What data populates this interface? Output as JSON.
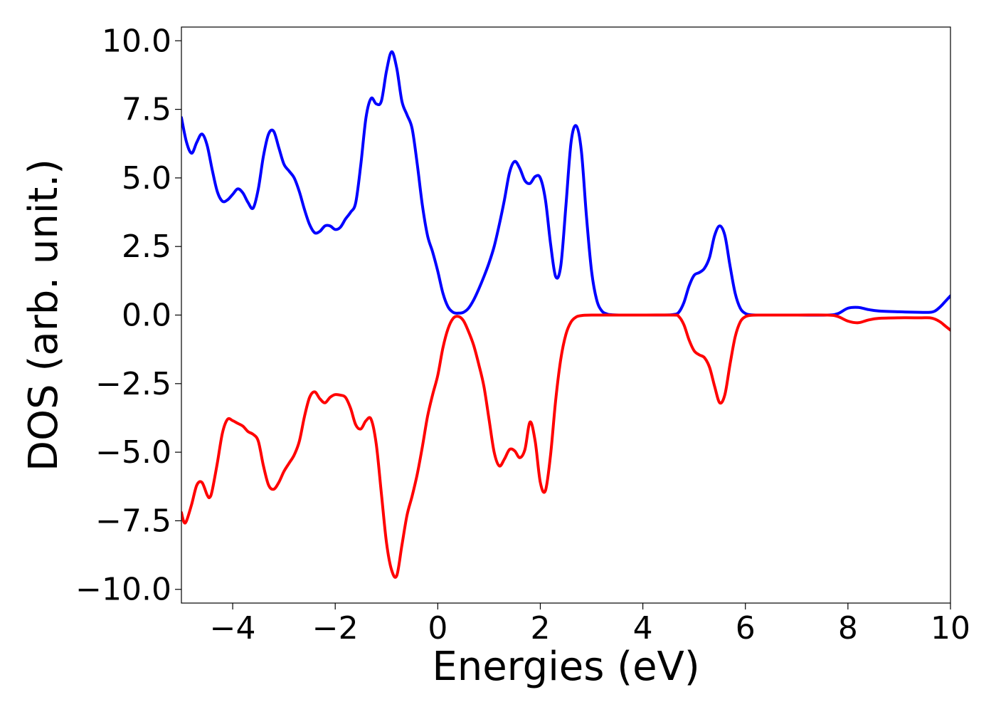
{
  "chart_data": {
    "type": "line",
    "title": "",
    "xlabel": "Energies (eV)",
    "ylabel": "DOS (arb. unit.)",
    "xlim": [
      -5,
      10
    ],
    "ylim": [
      -10.5,
      10.5
    ],
    "grid": false,
    "legend": "none",
    "x_ticks": [
      {
        "value": -4,
        "label": "−4"
      },
      {
        "value": -2,
        "label": "−2"
      },
      {
        "value": 0,
        "label": "0"
      },
      {
        "value": 2,
        "label": "2"
      },
      {
        "value": 4,
        "label": "4"
      },
      {
        "value": 6,
        "label": "6"
      },
      {
        "value": 8,
        "label": "8"
      },
      {
        "value": 10,
        "label": "10"
      }
    ],
    "y_ticks": [
      {
        "value": 10,
        "label": "10.0"
      },
      {
        "value": 7.5,
        "label": "7.5"
      },
      {
        "value": 5,
        "label": "5.0"
      },
      {
        "value": 2.5,
        "label": "2.5"
      },
      {
        "value": 0,
        "label": "0.0"
      },
      {
        "value": -2.5,
        "label": "−2.5"
      },
      {
        "value": -5,
        "label": "−5.0"
      },
      {
        "value": -7.5,
        "label": "−7.5"
      },
      {
        "value": -10,
        "label": "−10.0"
      }
    ],
    "series": [
      {
        "color": "#0000ff",
        "points": [
          [
            -5.0,
            7.2
          ],
          [
            -4.9,
            6.3
          ],
          [
            -4.8,
            5.9
          ],
          [
            -4.7,
            6.3
          ],
          [
            -4.6,
            6.6
          ],
          [
            -4.5,
            6.2
          ],
          [
            -4.4,
            5.3
          ],
          [
            -4.3,
            4.5
          ],
          [
            -4.2,
            4.15
          ],
          [
            -4.1,
            4.2
          ],
          [
            -4.0,
            4.4
          ],
          [
            -3.9,
            4.6
          ],
          [
            -3.8,
            4.45
          ],
          [
            -3.7,
            4.1
          ],
          [
            -3.6,
            3.9
          ],
          [
            -3.5,
            4.6
          ],
          [
            -3.4,
            5.8
          ],
          [
            -3.3,
            6.6
          ],
          [
            -3.2,
            6.7
          ],
          [
            -3.1,
            6.1
          ],
          [
            -3.0,
            5.5
          ],
          [
            -2.9,
            5.25
          ],
          [
            -2.8,
            5.0
          ],
          [
            -2.7,
            4.5
          ],
          [
            -2.6,
            3.85
          ],
          [
            -2.5,
            3.3
          ],
          [
            -2.4,
            3.0
          ],
          [
            -2.3,
            3.05
          ],
          [
            -2.2,
            3.25
          ],
          [
            -2.1,
            3.25
          ],
          [
            -2.0,
            3.12
          ],
          [
            -1.9,
            3.2
          ],
          [
            -1.8,
            3.5
          ],
          [
            -1.7,
            3.75
          ],
          [
            -1.6,
            4.1
          ],
          [
            -1.5,
            5.5
          ],
          [
            -1.4,
            7.2
          ],
          [
            -1.3,
            7.9
          ],
          [
            -1.2,
            7.7
          ],
          [
            -1.1,
            7.8
          ],
          [
            -1.0,
            8.9
          ],
          [
            -0.9,
            9.6
          ],
          [
            -0.8,
            9.0
          ],
          [
            -0.7,
            7.8
          ],
          [
            -0.6,
            7.3
          ],
          [
            -0.5,
            6.8
          ],
          [
            -0.4,
            5.5
          ],
          [
            -0.3,
            4.0
          ],
          [
            -0.2,
            2.9
          ],
          [
            -0.1,
            2.3
          ],
          [
            0.0,
            1.6
          ],
          [
            0.1,
            0.8
          ],
          [
            0.2,
            0.3
          ],
          [
            0.3,
            0.1
          ],
          [
            0.4,
            0.07
          ],
          [
            0.5,
            0.1
          ],
          [
            0.6,
            0.25
          ],
          [
            0.7,
            0.55
          ],
          [
            0.8,
            0.95
          ],
          [
            0.9,
            1.4
          ],
          [
            1.0,
            1.9
          ],
          [
            1.1,
            2.5
          ],
          [
            1.2,
            3.3
          ],
          [
            1.3,
            4.2
          ],
          [
            1.4,
            5.2
          ],
          [
            1.5,
            5.6
          ],
          [
            1.6,
            5.35
          ],
          [
            1.7,
            4.9
          ],
          [
            1.8,
            4.8
          ],
          [
            1.9,
            5.05
          ],
          [
            2.0,
            5.0
          ],
          [
            2.1,
            4.2
          ],
          [
            2.2,
            2.6
          ],
          [
            2.3,
            1.4
          ],
          [
            2.4,
            1.8
          ],
          [
            2.5,
            4.0
          ],
          [
            2.6,
            6.3
          ],
          [
            2.7,
            6.9
          ],
          [
            2.8,
            6.0
          ],
          [
            2.9,
            3.6
          ],
          [
            3.0,
            1.6
          ],
          [
            3.1,
            0.55
          ],
          [
            3.2,
            0.15
          ],
          [
            3.3,
            0.04
          ],
          [
            3.4,
            0.01
          ],
          [
            3.6,
            0.0
          ],
          [
            4.0,
            0.0
          ],
          [
            4.4,
            0.0
          ],
          [
            4.6,
            0.02
          ],
          [
            4.7,
            0.1
          ],
          [
            4.8,
            0.45
          ],
          [
            4.9,
            1.05
          ],
          [
            5.0,
            1.45
          ],
          [
            5.1,
            1.55
          ],
          [
            5.2,
            1.7
          ],
          [
            5.3,
            2.1
          ],
          [
            5.4,
            2.9
          ],
          [
            5.5,
            3.25
          ],
          [
            5.6,
            2.9
          ],
          [
            5.7,
            1.8
          ],
          [
            5.8,
            0.8
          ],
          [
            5.9,
            0.25
          ],
          [
            6.0,
            0.06
          ],
          [
            6.1,
            0.01
          ],
          [
            6.3,
            0.0
          ],
          [
            7.0,
            0.0
          ],
          [
            7.6,
            0.0
          ],
          [
            7.8,
            0.05
          ],
          [
            8.0,
            0.25
          ],
          [
            8.2,
            0.28
          ],
          [
            8.4,
            0.2
          ],
          [
            8.6,
            0.15
          ],
          [
            9.0,
            0.12
          ],
          [
            9.4,
            0.1
          ],
          [
            9.6,
            0.1
          ],
          [
            9.7,
            0.15
          ],
          [
            9.8,
            0.3
          ],
          [
            9.9,
            0.5
          ],
          [
            10.0,
            0.7
          ]
        ]
      },
      {
        "color": "#ff0000",
        "points": [
          [
            -5.0,
            -7.2
          ],
          [
            -4.95,
            -7.55
          ],
          [
            -4.9,
            -7.5
          ],
          [
            -4.8,
            -6.9
          ],
          [
            -4.7,
            -6.2
          ],
          [
            -4.6,
            -6.1
          ],
          [
            -4.5,
            -6.55
          ],
          [
            -4.45,
            -6.65
          ],
          [
            -4.4,
            -6.4
          ],
          [
            -4.3,
            -5.4
          ],
          [
            -4.2,
            -4.3
          ],
          [
            -4.1,
            -3.8
          ],
          [
            -4.0,
            -3.85
          ],
          [
            -3.9,
            -3.95
          ],
          [
            -3.8,
            -4.05
          ],
          [
            -3.7,
            -4.25
          ],
          [
            -3.6,
            -4.35
          ],
          [
            -3.5,
            -4.6
          ],
          [
            -3.4,
            -5.5
          ],
          [
            -3.3,
            -6.2
          ],
          [
            -3.2,
            -6.35
          ],
          [
            -3.1,
            -6.1
          ],
          [
            -3.0,
            -5.7
          ],
          [
            -2.9,
            -5.4
          ],
          [
            -2.8,
            -5.1
          ],
          [
            -2.7,
            -4.6
          ],
          [
            -2.6,
            -3.7
          ],
          [
            -2.5,
            -3.0
          ],
          [
            -2.4,
            -2.8
          ],
          [
            -2.3,
            -3.05
          ],
          [
            -2.2,
            -3.2
          ],
          [
            -2.1,
            -3.0
          ],
          [
            -2.0,
            -2.9
          ],
          [
            -1.9,
            -2.92
          ],
          [
            -1.8,
            -3.0
          ],
          [
            -1.7,
            -3.4
          ],
          [
            -1.6,
            -4.0
          ],
          [
            -1.5,
            -4.15
          ],
          [
            -1.4,
            -3.85
          ],
          [
            -1.3,
            -3.8
          ],
          [
            -1.2,
            -4.7
          ],
          [
            -1.1,
            -6.5
          ],
          [
            -1.0,
            -8.3
          ],
          [
            -0.9,
            -9.3
          ],
          [
            -0.8,
            -9.5
          ],
          [
            -0.7,
            -8.4
          ],
          [
            -0.6,
            -7.3
          ],
          [
            -0.5,
            -6.6
          ],
          [
            -0.4,
            -5.8
          ],
          [
            -0.3,
            -4.8
          ],
          [
            -0.2,
            -3.7
          ],
          [
            -0.1,
            -2.9
          ],
          [
            0.0,
            -2.2
          ],
          [
            0.1,
            -1.2
          ],
          [
            0.2,
            -0.5
          ],
          [
            0.3,
            -0.12
          ],
          [
            0.4,
            -0.05
          ],
          [
            0.5,
            -0.2
          ],
          [
            0.6,
            -0.6
          ],
          [
            0.7,
            -1.1
          ],
          [
            0.8,
            -1.8
          ],
          [
            0.9,
            -2.6
          ],
          [
            1.0,
            -3.8
          ],
          [
            1.1,
            -5.0
          ],
          [
            1.2,
            -5.5
          ],
          [
            1.3,
            -5.25
          ],
          [
            1.4,
            -4.9
          ],
          [
            1.5,
            -4.95
          ],
          [
            1.6,
            -5.2
          ],
          [
            1.7,
            -4.9
          ],
          [
            1.8,
            -3.9
          ],
          [
            1.9,
            -4.6
          ],
          [
            2.0,
            -6.1
          ],
          [
            2.1,
            -6.4
          ],
          [
            2.2,
            -5.1
          ],
          [
            2.3,
            -3.1
          ],
          [
            2.4,
            -1.6
          ],
          [
            2.5,
            -0.7
          ],
          [
            2.6,
            -0.25
          ],
          [
            2.7,
            -0.07
          ],
          [
            2.8,
            -0.02
          ],
          [
            3.0,
            0.0
          ],
          [
            4.0,
            0.0
          ],
          [
            4.6,
            0.0
          ],
          [
            4.7,
            -0.05
          ],
          [
            4.8,
            -0.35
          ],
          [
            4.9,
            -0.9
          ],
          [
            5.0,
            -1.3
          ],
          [
            5.1,
            -1.45
          ],
          [
            5.2,
            -1.55
          ],
          [
            5.3,
            -1.9
          ],
          [
            5.4,
            -2.6
          ],
          [
            5.5,
            -3.2
          ],
          [
            5.6,
            -2.9
          ],
          [
            5.7,
            -1.8
          ],
          [
            5.8,
            -0.8
          ],
          [
            5.9,
            -0.25
          ],
          [
            6.0,
            -0.06
          ],
          [
            6.1,
            -0.01
          ],
          [
            6.3,
            0.0
          ],
          [
            7.0,
            0.0
          ],
          [
            7.6,
            0.0
          ],
          [
            7.8,
            -0.05
          ],
          [
            8.0,
            -0.22
          ],
          [
            8.2,
            -0.28
          ],
          [
            8.4,
            -0.18
          ],
          [
            8.6,
            -0.12
          ],
          [
            9.0,
            -0.1
          ],
          [
            9.4,
            -0.1
          ],
          [
            9.6,
            -0.1
          ],
          [
            9.7,
            -0.15
          ],
          [
            9.8,
            -0.25
          ],
          [
            9.9,
            -0.4
          ],
          [
            10.0,
            -0.55
          ]
        ]
      }
    ]
  }
}
